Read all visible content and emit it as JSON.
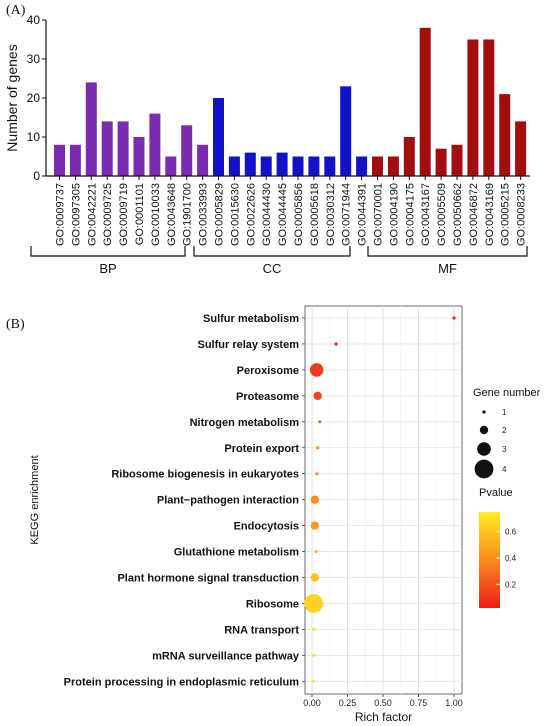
{
  "chart_data": [
    {
      "type": "bar",
      "panel_label": "(A)",
      "ylabel": "Number of genes",
      "ylim": [
        0,
        40
      ],
      "yticks": [
        0,
        10,
        20,
        30,
        40
      ],
      "categories": [
        "GO:0009737",
        "GO:0097305",
        "GO:0042221",
        "GO:0009725",
        "GO:0009719",
        "GO:0001101",
        "GO:0010033",
        "GO:0043648",
        "GO:1901700",
        "GO:0033993",
        "GO:0005829",
        "GO:0015630",
        "GO:0022626",
        "GO:0044430",
        "GO:0044445",
        "GO:0005856",
        "GO:0005618",
        "GO:0030312",
        "GO:0071944",
        "GO:0044391",
        "GO:0070001",
        "GO:0004190",
        "GO:0004175",
        "GO:0043167",
        "GO:0005509",
        "GO:0050662",
        "GO:0046872",
        "GO:0043169",
        "GO:0005215",
        "GO:0008233"
      ],
      "values": [
        8,
        8,
        24,
        14,
        14,
        10,
        16,
        5,
        13,
        8,
        20,
        5,
        6,
        5,
        6,
        5,
        5,
        5,
        23,
        5,
        5,
        5,
        10,
        38,
        7,
        8,
        35,
        35,
        21,
        14
      ],
      "groups": [
        {
          "name": "BP",
          "start": 0,
          "end": 9,
          "color": "#7a2bb0"
        },
        {
          "name": "CC",
          "start": 10,
          "end": 19,
          "color": "#1212c8"
        },
        {
          "name": "MF",
          "start": 20,
          "end": 29,
          "color": "#a30d0d"
        }
      ]
    },
    {
      "type": "scatter",
      "panel_label": "(B)",
      "xlabel": "Rich factor",
      "ylabel": "KEGG enrichment",
      "xlim": [
        0,
        1.0
      ],
      "xticks": [
        "0.00",
        "0.25",
        "0.50",
        "0.75",
        "1.00"
      ],
      "grid": true,
      "categories": [
        "Sulfur metabolism",
        "Sulfur relay system",
        "Peroxisome",
        "Proteasome",
        "Nitrogen metabolism",
        "Protein export",
        "Ribosome biogenesis in eukaryotes",
        "Plant−pathogen interaction",
        "Endocytosis",
        "Glutathione metabolism",
        "Plant hormone signal transduction",
        "Ribosome",
        "RNA transport",
        "mRNA surveillance pathway",
        "Protein processing in endoplasmic reticulum"
      ],
      "points": [
        {
          "rich_factor": 1.0,
          "gene_number": 1,
          "pvalue": 0.02
        },
        {
          "rich_factor": 0.17,
          "gene_number": 1,
          "pvalue": 0.05
        },
        {
          "rich_factor": 0.033,
          "gene_number": 3,
          "pvalue": 0.12
        },
        {
          "rich_factor": 0.04,
          "gene_number": 2,
          "pvalue": 0.15
        },
        {
          "rich_factor": 0.055,
          "gene_number": 1,
          "pvalue": 0.28
        },
        {
          "rich_factor": 0.04,
          "gene_number": 1,
          "pvalue": 0.38
        },
        {
          "rich_factor": 0.035,
          "gene_number": 1,
          "pvalue": 0.42
        },
        {
          "rich_factor": 0.02,
          "gene_number": 2,
          "pvalue": 0.4
        },
        {
          "rich_factor": 0.02,
          "gene_number": 2,
          "pvalue": 0.44
        },
        {
          "rich_factor": 0.03,
          "gene_number": 1,
          "pvalue": 0.55
        },
        {
          "rich_factor": 0.02,
          "gene_number": 2,
          "pvalue": 0.58
        },
        {
          "rich_factor": 0.012,
          "gene_number": 4,
          "pvalue": 0.65
        },
        {
          "rich_factor": 0.012,
          "gene_number": 1,
          "pvalue": 0.7
        },
        {
          "rich_factor": 0.015,
          "gene_number": 1,
          "pvalue": 0.72
        },
        {
          "rich_factor": 0.01,
          "gene_number": 1,
          "pvalue": 0.75
        }
      ],
      "size_legend": {
        "title": "Gene number",
        "levels": [
          1,
          2,
          3,
          4
        ]
      },
      "color_legend": {
        "title": "Pvalue",
        "ticks": [
          0.2,
          0.4,
          0.6
        ],
        "range": [
          0.02,
          0.75
        ],
        "low_color": "#ee1c1c",
        "high_color": "#ffee22"
      }
    }
  ]
}
